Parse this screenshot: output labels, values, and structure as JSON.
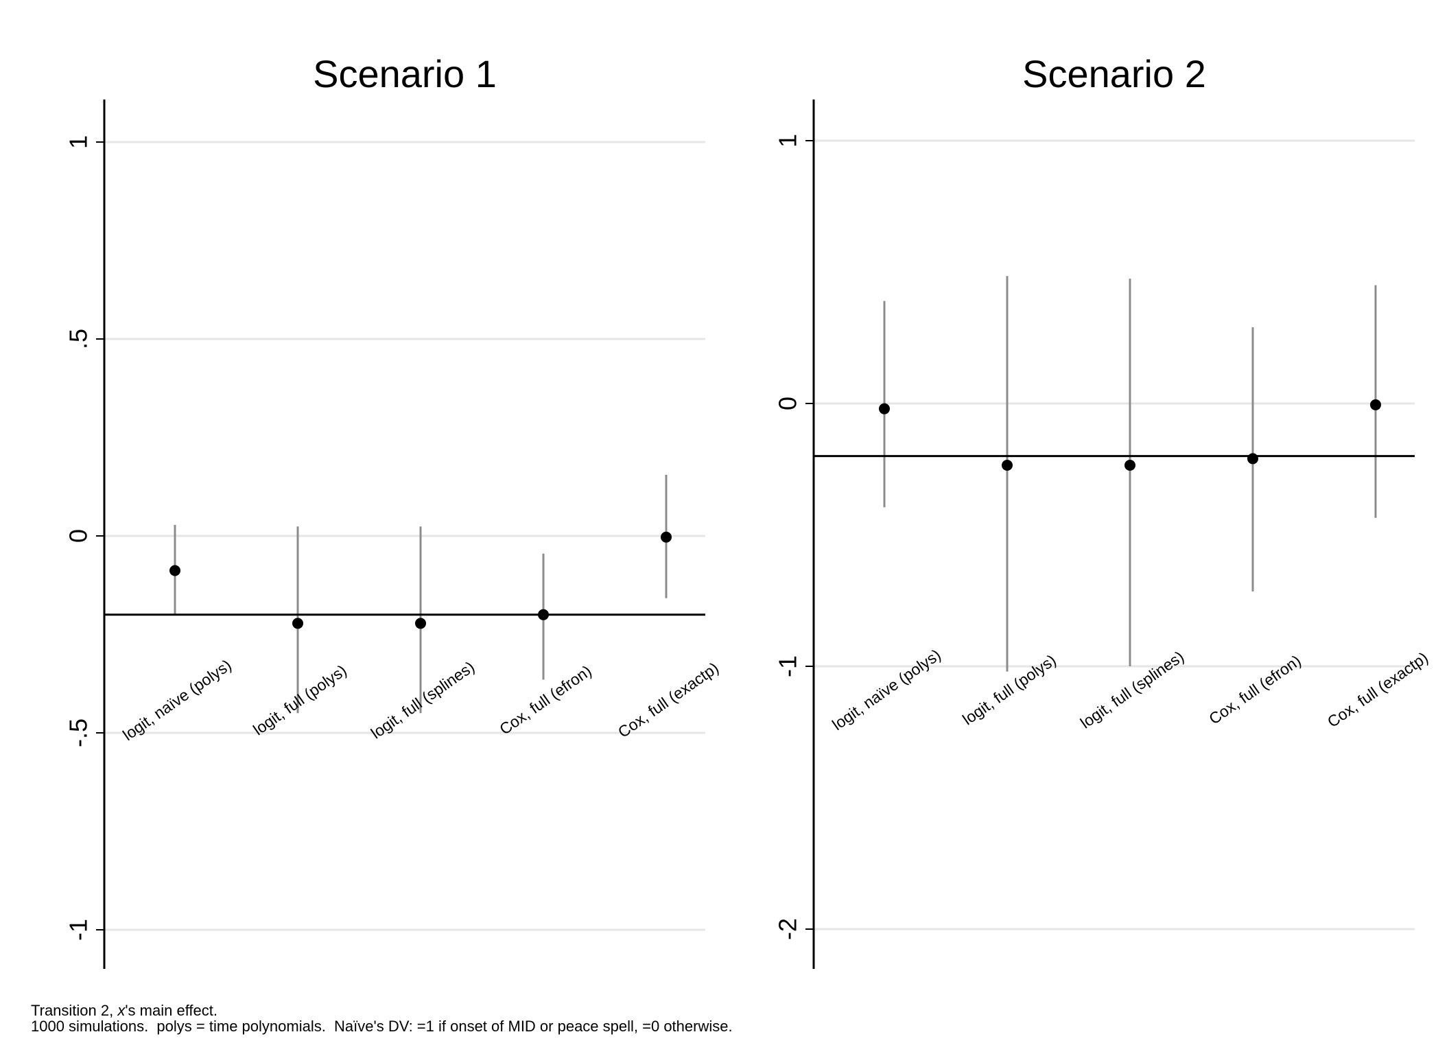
{
  "chart_data": [
    {
      "type": "scatter",
      "title": "Scenario 1",
      "categories": [
        "logit, naïve (polys)",
        "logit, full (polys)",
        "logit, full (splines)",
        "Cox, full (efron)",
        "Cox, full (exactp)"
      ],
      "estimates": [
        -0.088,
        -0.222,
        -0.222,
        -0.2,
        -0.003
      ],
      "ci_low": [
        -0.2,
        -0.45,
        -0.45,
        -0.365,
        -0.158
      ],
      "ci_high": [
        0.028,
        0.024,
        0.024,
        -0.045,
        0.155
      ],
      "reference_line": -0.2,
      "yticks": [
        {
          "value": -1,
          "label": "-1"
        },
        {
          "value": -0.5,
          "label": "-.5"
        },
        {
          "value": 0,
          "label": "0"
        },
        {
          "value": 0.5,
          "label": ".5"
        },
        {
          "value": 1,
          "label": "1"
        }
      ],
      "ylim": [
        -1.1,
        1.1
      ],
      "grid": true,
      "colors": {
        "ci": "#8c8c8c",
        "point": "#000000",
        "grid": "#e6e6e6",
        "reference": "#000000"
      }
    },
    {
      "type": "scatter",
      "title": "Scenario 2",
      "categories": [
        "logit, naïve (polys)",
        "logit, full (polys)",
        "logit, full (splines)",
        "Cox, full (efron)",
        "Cox, full (exactp)"
      ],
      "estimates": [
        -0.02,
        -0.235,
        -0.235,
        -0.21,
        -0.005
      ],
      "ci_low": [
        -0.395,
        -1.02,
        -1.0,
        -0.715,
        -0.435
      ],
      "ci_high": [
        0.39,
        0.485,
        0.475,
        0.29,
        0.45
      ],
      "reference_line": -0.2,
      "yticks": [
        {
          "value": -2,
          "label": "-2"
        },
        {
          "value": -1,
          "label": "-1"
        },
        {
          "value": 0,
          "label": "0"
        },
        {
          "value": 1,
          "label": "1"
        }
      ],
      "ylim": [
        -2.15,
        1.15
      ],
      "grid": true,
      "colors": {
        "ci": "#8c8c8c",
        "point": "#000000",
        "grid": "#e6e6e6",
        "reference": "#000000"
      }
    }
  ],
  "note": {
    "line1_prefix": "Transition 2, ",
    "line1_var": "x",
    "line1_suffix": "'s main effect.",
    "line2": "1000 simulations.  polys = time polynomials.  Naïve's DV: =1 if onset of MID or peace spell, =0 otherwise."
  }
}
